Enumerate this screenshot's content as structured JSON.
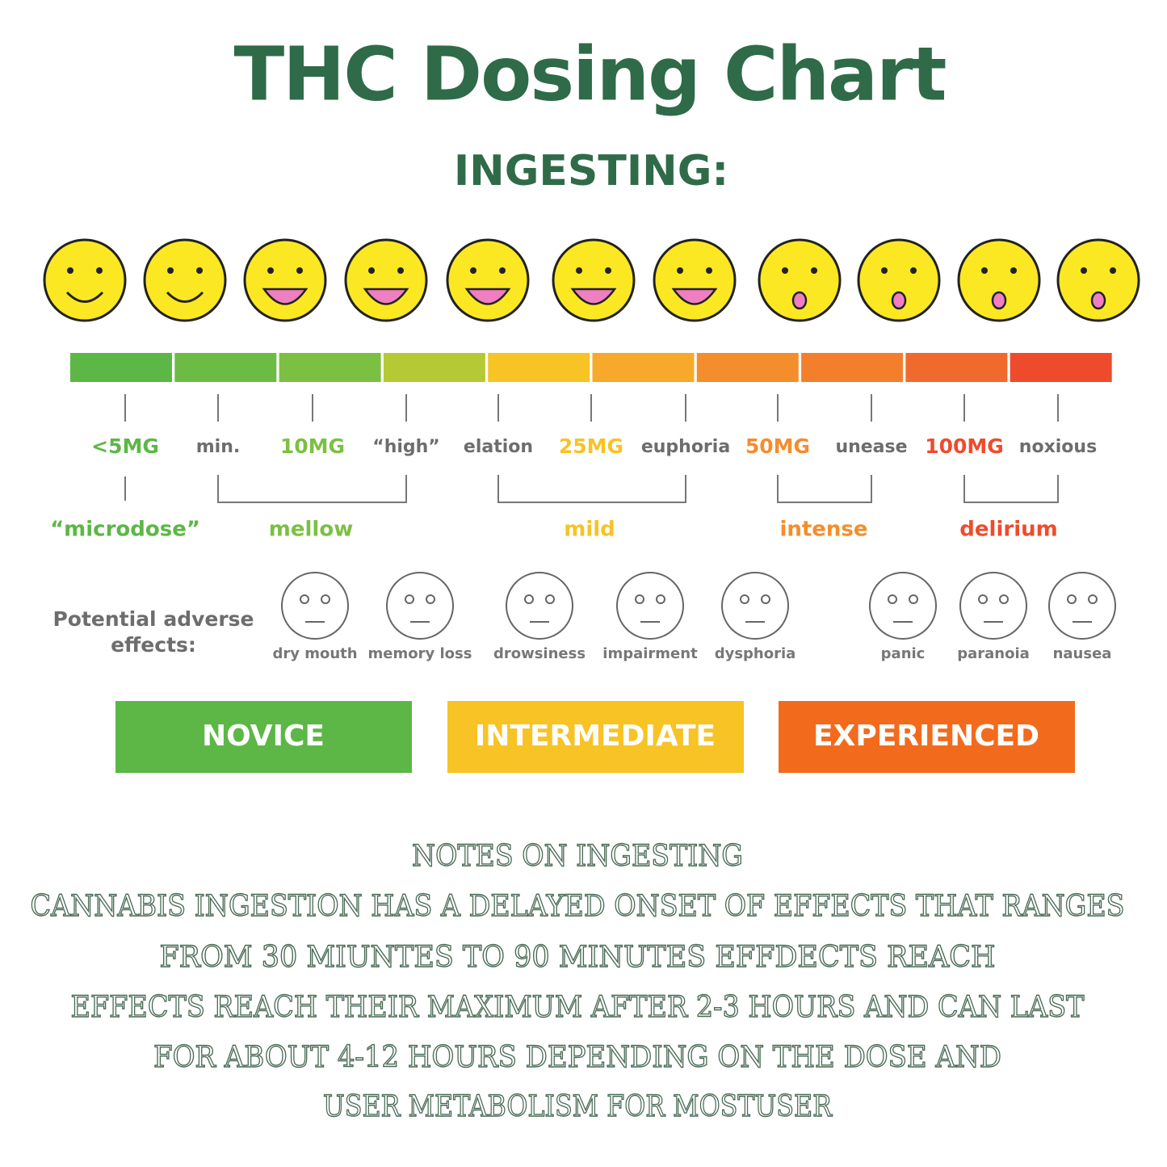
{
  "header": {
    "title": "THC Dosing Chart",
    "subtitle": "INGESTING:"
  },
  "doses": [
    "<5MG",
    "min.",
    "10MG",
    "“high”",
    "elation",
    "25MG",
    "euphoria",
    "50MG",
    "unease",
    "100MG",
    "noxious"
  ],
  "levels": [
    "“microdose”",
    "mellow",
    "mild",
    "intense",
    "delirium"
  ],
  "adverse": {
    "heading": [
      "Potential adverse",
      "effects:"
    ],
    "effects": [
      "dry mouth",
      "memory loss",
      "drowsiness",
      "impairment",
      "dysphoria",
      "panic",
      "paranoia",
      "nausea"
    ]
  },
  "experience": [
    "NOVICE",
    "INTERMEDIATE",
    "EXPERIENCED"
  ],
  "notes": {
    "title": "NOTES ON INGESTING",
    "lines": [
      "CANNABIS INGESTION HAS A DELAYED ONSET OF EFFECTS THAT RANGES",
      "FROM 30 MIUNTES TO 90 MINUTES EFFDECTS REACH",
      "EFFECTS REACH THEIR MAXIMUM AFTER 2-3 HOURS AND CAN LAST",
      "FOR ABOUT 4-12 HOURS DEPENDING ON THE DOSE AND",
      "USER METABOLISM FOR MOSTUSER"
    ]
  }
}
